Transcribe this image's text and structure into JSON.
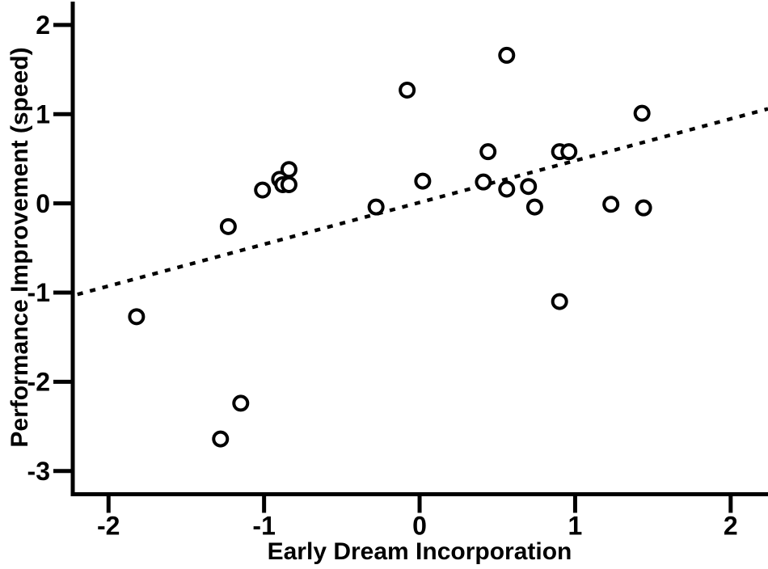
{
  "page": {
    "background": "#ffffff",
    "ink": "#000000"
  },
  "chart_data": {
    "type": "scatter",
    "title": "",
    "xlabel": "Early Dream Incorporation",
    "ylabel": "Performance Improvement (speed)",
    "xlim": [
      -2.23,
      2.24
    ],
    "ylim": [
      -3.26,
      2.28
    ],
    "grid": false,
    "legend": null,
    "marker": {
      "shape": "open-circle",
      "radius": 8.5,
      "stroke_width": 4
    },
    "x_ticks": [
      {
        "value": -2,
        "label": "-2"
      },
      {
        "value": -1,
        "label": "-1"
      },
      {
        "value": 0,
        "label": "0"
      },
      {
        "value": 1,
        "label": "1"
      },
      {
        "value": 2,
        "label": "2"
      }
    ],
    "y_ticks": [
      {
        "value": 2,
        "label": "2"
      },
      {
        "value": 1,
        "label": "1"
      },
      {
        "value": 0,
        "label": "0"
      },
      {
        "value": -1,
        "label": "-1"
      },
      {
        "value": -2,
        "label": "-2"
      },
      {
        "value": -3,
        "label": "-3"
      }
    ],
    "points": [
      {
        "x": -1.82,
        "y": -1.27
      },
      {
        "x": -1.28,
        "y": -2.64
      },
      {
        "x": -1.15,
        "y": -2.24
      },
      {
        "x": -1.23,
        "y": -0.26
      },
      {
        "x": -1.01,
        "y": 0.15
      },
      {
        "x": -0.84,
        "y": 0.38
      },
      {
        "x": -0.9,
        "y": 0.27
      },
      {
        "x": -0.88,
        "y": 0.21
      },
      {
        "x": -0.84,
        "y": 0.21
      },
      {
        "x": -0.28,
        "y": -0.04
      },
      {
        "x": -0.08,
        "y": 1.27
      },
      {
        "x": 0.02,
        "y": 0.25
      },
      {
        "x": 0.41,
        "y": 0.24
      },
      {
        "x": 0.44,
        "y": 0.58
      },
      {
        "x": 0.56,
        "y": 1.66
      },
      {
        "x": 0.56,
        "y": 0.16
      },
      {
        "x": 0.7,
        "y": 0.19
      },
      {
        "x": 0.74,
        "y": -0.04
      },
      {
        "x": 0.9,
        "y": 0.58
      },
      {
        "x": 0.96,
        "y": 0.58
      },
      {
        "x": 0.9,
        "y": -1.1
      },
      {
        "x": 1.23,
        "y": -0.01
      },
      {
        "x": 1.43,
        "y": 1.01
      },
      {
        "x": 1.44,
        "y": -0.05
      }
    ],
    "trend_line": {
      "style": "dotted",
      "x1": -2.2,
      "y1": -1.02,
      "x2": 2.24,
      "y2": 1.06
    }
  }
}
